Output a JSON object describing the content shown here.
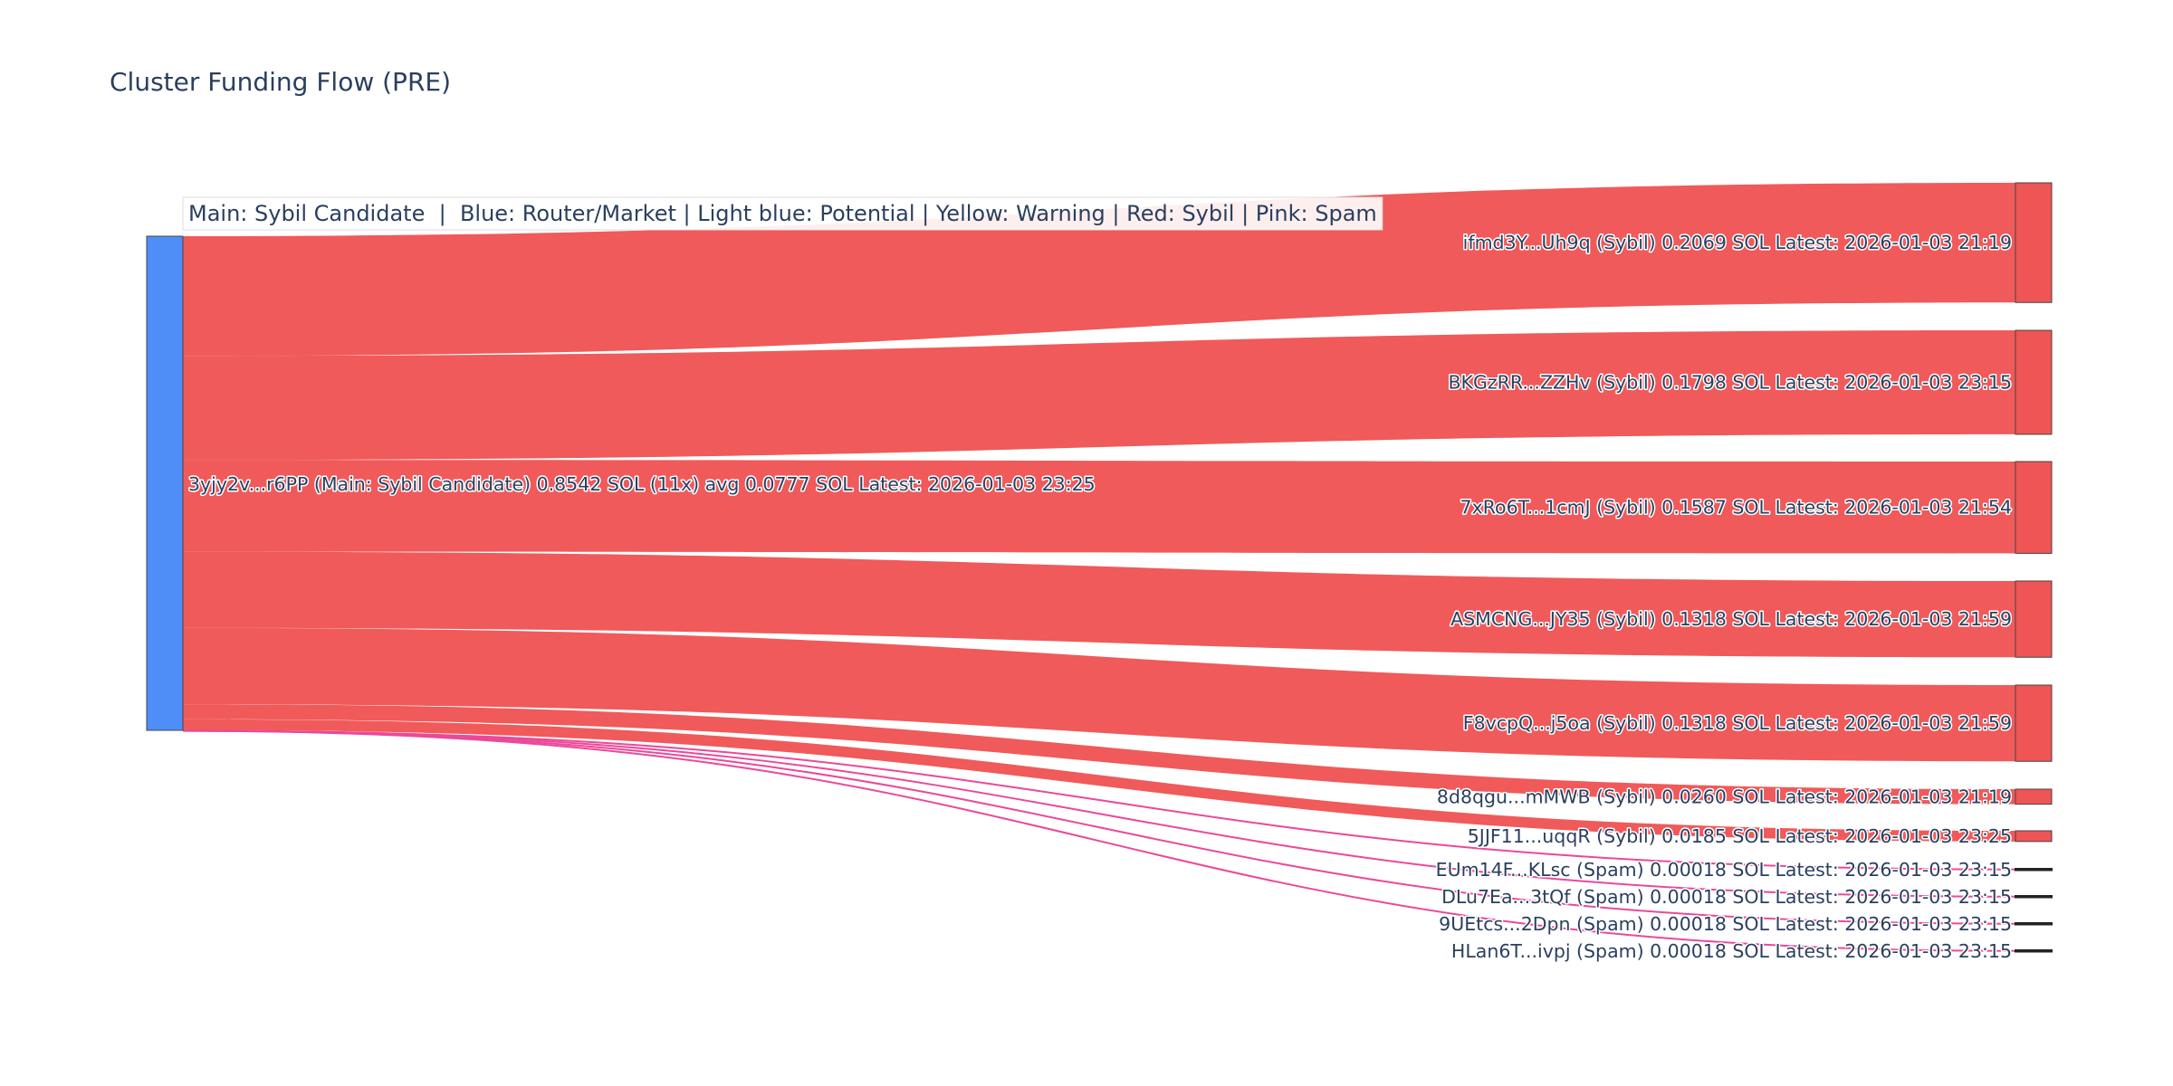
{
  "chart_data": {
    "type": "sankey",
    "title": "Cluster Funding Flow (PRE)",
    "legend_note": "Main: Sybil Candidate  |  Blue: Router/Market | Light blue: Potential | Yellow: Warning | Red: Sybil | Pink: Spam",
    "unit": "SOL",
    "colors": {
      "main": "#4f8ef7",
      "sybil": "#ef5555",
      "spam": "#ec4899",
      "node_border": "#444444"
    },
    "source": {
      "id": "3yjy2v...r6PP",
      "label": "3yjy2v...r6PP (Main: Sybil Candidate) 0.8542 SOL (11x) avg 0.0777 SOL Latest: 2026-01-03 23:25",
      "category": "Main: Sybil Candidate",
      "value": 0.8542
    },
    "targets": [
      {
        "id": "ifmd3Y...Uh9q",
        "category": "Sybil",
        "value": 0.2069,
        "label": "ifmd3Y...Uh9q (Sybil) 0.2069 SOL Latest: 2026-01-03 21:19"
      },
      {
        "id": "BKGzRR...ZZHv",
        "category": "Sybil",
        "value": 0.1798,
        "label": "BKGzRR...ZZHv (Sybil) 0.1798 SOL Latest: 2026-01-03 23:15"
      },
      {
        "id": "7xRo6T...1cmJ",
        "category": "Sybil",
        "value": 0.1587,
        "label": "7xRo6T...1cmJ (Sybil) 0.1587 SOL Latest: 2026-01-03 21:54"
      },
      {
        "id": "ASMCNG...JY35",
        "category": "Sybil",
        "value": 0.1318,
        "label": "ASMCNG...JY35 (Sybil) 0.1318 SOL Latest: 2026-01-03 21:59"
      },
      {
        "id": "F8vcpQ...j5oa",
        "category": "Sybil",
        "value": 0.1318,
        "label": "F8vcpQ...j5oa (Sybil) 0.1318 SOL Latest: 2026-01-03 21:59"
      },
      {
        "id": "8d8qgu...mMWB",
        "category": "Sybil",
        "value": 0.026,
        "label": "8d8qgu...mMWB (Sybil) 0.0260 SOL Latest: 2026-01-03 21:19"
      },
      {
        "id": "5JJF11...uqqR",
        "category": "Sybil",
        "value": 0.0185,
        "label": "5JJF11...uqqR (Sybil) 0.0185 SOL Latest: 2026-01-03 23:25"
      },
      {
        "id": "EUm14F...KLsc",
        "category": "Spam",
        "value": 0.00018,
        "label": "EUm14F...KLsc (Spam) 0.00018 SOL Latest: 2026-01-03 23:15"
      },
      {
        "id": "DLu7Ea...3tQf",
        "category": "Spam",
        "value": 0.00018,
        "label": "DLu7Ea...3tQf (Spam) 0.00018 SOL Latest: 2026-01-03 23:15"
      },
      {
        "id": "9UEtcs...2Dpn",
        "category": "Spam",
        "value": 0.00018,
        "label": "9UEtcs...2Dpn (Spam) 0.00018 SOL Latest: 2026-01-03 23:15"
      },
      {
        "id": "HLan6T...ivpj",
        "category": "Spam",
        "value": 0.00018,
        "label": "HLan6T...ivpj (Spam) 0.00018 SOL Latest: 2026-01-03 23:15"
      }
    ]
  }
}
